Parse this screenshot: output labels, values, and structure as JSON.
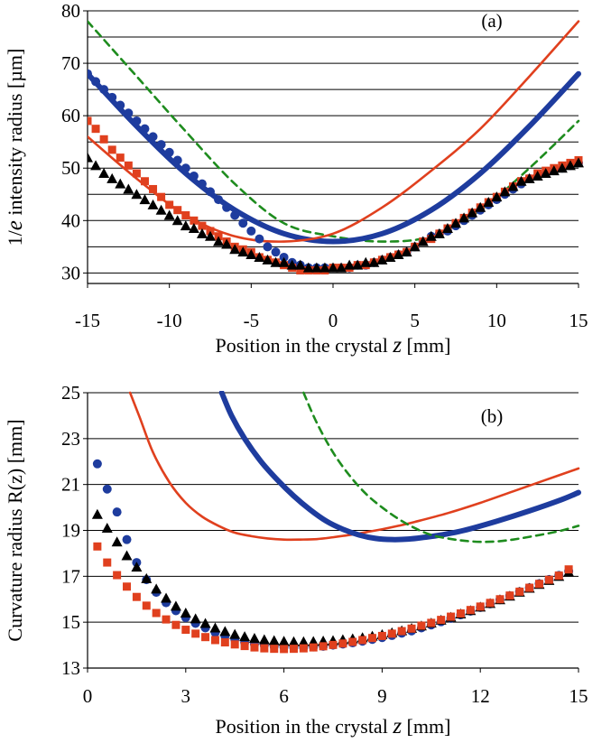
{
  "chart_data": [
    {
      "type": "line",
      "panel_label": "(a)",
      "xlabel": {
        "prefix": "Position in the crystal ",
        "italic": "z",
        "suffix": " [mm]"
      },
      "ylabel": {
        "prefix": "1/",
        "italic": "e",
        "suffix": " intensity radius [µm]"
      },
      "xlim": [
        -15,
        15
      ],
      "ylim": [
        28,
        80
      ],
      "xticks": [
        -15,
        -10,
        -5,
        0,
        5,
        10,
        15
      ],
      "yticks": [
        30,
        40,
        50,
        60,
        70,
        80
      ],
      "gridlines_y": [
        30,
        35,
        40,
        45,
        50,
        55,
        60,
        65,
        70,
        75,
        80
      ],
      "series": [
        {
          "style": "dashed-line",
          "color": "#1e8c1e",
          "x": [
            -15,
            -12,
            -9,
            -6,
            -3,
            0,
            3,
            6,
            9,
            12,
            15
          ],
          "y": [
            78,
            67.5,
            57,
            47,
            39.5,
            37,
            36,
            37,
            42,
            50,
            59
          ]
        },
        {
          "style": "thick-line",
          "color": "#1e3c9e",
          "x": [
            -15,
            -12,
            -9,
            -6,
            -3,
            0,
            3,
            6,
            9,
            12,
            15
          ],
          "y": [
            68,
            58,
            49,
            42,
            37.5,
            36,
            37.5,
            42,
            49,
            58,
            68
          ]
        },
        {
          "style": "line",
          "color": "#e0401e",
          "x": [
            -15,
            -12,
            -9,
            -6,
            -3,
            0,
            3,
            6,
            9,
            12,
            15
          ],
          "y": [
            56,
            48,
            41,
            37,
            36,
            37.5,
            42.5,
            49.5,
            57.5,
            67.5,
            78
          ]
        },
        {
          "style": "circle-markers",
          "color": "#1e3c9e",
          "x": [
            -15,
            -14.5,
            -14,
            -13.5,
            -13,
            -12.5,
            -12,
            -11.5,
            -11,
            -10.5,
            -10,
            -9.5,
            -9,
            -8.5,
            -8,
            -7.5,
            -7,
            -6.5,
            -6,
            -5.5,
            -5,
            -4.5,
            -4,
            -3.5,
            -3,
            -2.5,
            -2,
            -1.5,
            -1,
            -0.5,
            0,
            0.5,
            1,
            1.5,
            2,
            2.5,
            3,
            3.5,
            4,
            4.5,
            5,
            5.5,
            6,
            6.5,
            7,
            7.5,
            8,
            8.5,
            9,
            9.5,
            10,
            10.5,
            11,
            11.5,
            12,
            12.5,
            13,
            13.5,
            14,
            14.5,
            15
          ],
          "y": [
            68,
            66.5,
            65,
            63.5,
            62,
            60.5,
            59,
            57.5,
            56,
            54.5,
            53,
            51.5,
            50,
            48.5,
            47,
            45.5,
            44,
            42.5,
            41,
            39.5,
            38,
            36.5,
            35,
            34,
            33,
            32,
            31.5,
            31,
            31,
            31,
            31,
            31,
            31,
            31.5,
            31.5,
            32,
            32.5,
            33,
            33.5,
            34,
            35,
            36,
            37,
            37.5,
            38,
            39,
            40,
            41,
            42,
            43,
            44,
            45,
            46,
            47,
            48,
            48.5,
            49,
            49.5,
            50,
            50.5,
            51
          ]
        },
        {
          "style": "square-markers",
          "color": "#e0401e",
          "x": [
            -15,
            -14.5,
            -14,
            -13.5,
            -13,
            -12.5,
            -12,
            -11.5,
            -11,
            -10.5,
            -10,
            -9.5,
            -9,
            -8.5,
            -8,
            -7.5,
            -7,
            -6.5,
            -6,
            -5.5,
            -5,
            -4.5,
            -4,
            -3.5,
            -3,
            -2.5,
            -2,
            -1.5,
            -1,
            -0.5,
            0,
            0.5,
            1,
            1.5,
            2,
            2.5,
            3,
            3.5,
            4,
            4.5,
            5,
            5.5,
            6,
            6.5,
            7,
            7.5,
            8,
            8.5,
            9,
            9.5,
            10,
            10.5,
            11,
            11.5,
            12,
            12.5,
            13,
            13.5,
            14,
            14.5,
            15
          ],
          "y": [
            59,
            57.5,
            55.5,
            53.5,
            52,
            50.5,
            49,
            47.5,
            46,
            44.5,
            43,
            42,
            41,
            40,
            39,
            38,
            37,
            36,
            35,
            34.5,
            34,
            33,
            32.5,
            32,
            31.5,
            31,
            30.5,
            30.5,
            30.5,
            30.5,
            31,
            31,
            31,
            31.5,
            31.5,
            32,
            32.5,
            33,
            33.5,
            34,
            35,
            36,
            36.5,
            37.5,
            38.5,
            39.5,
            40.5,
            41.5,
            42.5,
            43.5,
            44.5,
            45.5,
            46.5,
            47.5,
            48,
            49,
            49.5,
            50,
            50.5,
            51,
            51.5
          ]
        },
        {
          "style": "triangle-markers",
          "color": "#000000",
          "x": [
            -15,
            -14.5,
            -14,
            -13.5,
            -13,
            -12.5,
            -12,
            -11.5,
            -11,
            -10.5,
            -10,
            -9.5,
            -9,
            -8.5,
            -8,
            -7.5,
            -7,
            -6.5,
            -6,
            -5.5,
            -5,
            -4.5,
            -4,
            -3.5,
            -3,
            -2.5,
            -2,
            -1.5,
            -1,
            -0.5,
            0,
            0.5,
            1,
            1.5,
            2,
            2.5,
            3,
            3.5,
            4,
            4.5,
            5,
            5.5,
            6,
            6.5,
            7,
            7.5,
            8,
            8.5,
            9,
            9.5,
            10,
            10.5,
            11,
            11.5,
            12,
            12.5,
            13,
            13.5,
            14,
            14.5,
            15
          ],
          "y": [
            52,
            50.5,
            49,
            48,
            47,
            46,
            45,
            44,
            43,
            42,
            41,
            40,
            39,
            38.5,
            37.5,
            37,
            36,
            35.5,
            34.5,
            34,
            33.5,
            33,
            32.5,
            32,
            32,
            31.5,
            31.5,
            31,
            31,
            31,
            31,
            31,
            31.5,
            31.5,
            32,
            32,
            32.5,
            33,
            33.5,
            34,
            35,
            36,
            37,
            37.5,
            38.5,
            39.5,
            40.5,
            41.5,
            42.5,
            43.5,
            44.5,
            45.5,
            46.5,
            47.5,
            48,
            48.5,
            49,
            49.5,
            50,
            50.5,
            51
          ]
        }
      ]
    },
    {
      "type": "line",
      "panel_label": "(b)",
      "xlabel": {
        "prefix": "Position in the crystal ",
        "italic": "z",
        "suffix": " [mm]"
      },
      "ylabel": {
        "prefix": "Curvature radius R(z) [mm]",
        "italic": "",
        "suffix": ""
      },
      "xlim": [
        0,
        15
      ],
      "ylim": [
        13,
        25
      ],
      "xticks": [
        0,
        3,
        6,
        9,
        12,
        15
      ],
      "yticks": [
        13,
        15,
        17,
        19,
        21,
        23,
        25
      ],
      "gridlines_y": [
        13,
        15,
        17,
        19,
        21,
        23,
        25
      ],
      "series": [
        {
          "style": "line",
          "color": "#e0401e",
          "x": [
            1.3,
            1.6,
            2,
            2.5,
            3,
            3.5,
            4,
            4.5,
            5,
            5.5,
            6,
            6.5,
            7,
            7.5,
            8,
            8.5,
            9,
            9.5,
            10,
            11,
            12,
            13,
            14,
            15
          ],
          "y": [
            25,
            23.9,
            22.4,
            21.1,
            20.2,
            19.6,
            19.2,
            18.9,
            18.75,
            18.65,
            18.6,
            18.6,
            18.62,
            18.7,
            18.8,
            18.92,
            19.05,
            19.2,
            19.37,
            19.75,
            20.2,
            20.7,
            21.2,
            21.7
          ]
        },
        {
          "style": "thick-line",
          "color": "#1e3c9e",
          "x": [
            4.1,
            4.4,
            4.8,
            5.3,
            5.8,
            6.3,
            6.8,
            7.3,
            7.8,
            8.3,
            8.8,
            9.3,
            9.8,
            10.3,
            10.8,
            11.5,
            12.5,
            13.5,
            14.5,
            15
          ],
          "y": [
            25,
            24,
            23.0,
            22.0,
            21.2,
            20.5,
            19.9,
            19.4,
            19.05,
            18.8,
            18.65,
            18.6,
            18.62,
            18.7,
            18.8,
            19.0,
            19.4,
            19.85,
            20.35,
            20.65
          ]
        },
        {
          "style": "dashed-line",
          "color": "#1e8c1e",
          "x": [
            6.6,
            7,
            7.5,
            8,
            8.5,
            9,
            9.5,
            10,
            10.5,
            11,
            11.5,
            12,
            12.5,
            13,
            13.5,
            14,
            14.5,
            15
          ],
          "y": [
            25,
            23.7,
            22.4,
            21.4,
            20.6,
            20.0,
            19.5,
            19.1,
            18.8,
            18.65,
            18.55,
            18.5,
            18.52,
            18.6,
            18.72,
            18.85,
            19.0,
            19.2
          ]
        },
        {
          "style": "circle-markers",
          "color": "#1e3c9e",
          "x": [
            0.3,
            0.6,
            0.9,
            1.2,
            1.5,
            1.8,
            2.1,
            2.4,
            2.7,
            3.0,
            3.3,
            3.6,
            3.9,
            4.2,
            4.5,
            4.8,
            5.1,
            5.4,
            5.7,
            6.0,
            6.3,
            6.6,
            6.9,
            7.2,
            7.5,
            7.8,
            8.1,
            8.4,
            8.7,
            9.0,
            9.3,
            9.6,
            9.9,
            10.2,
            10.5,
            10.8,
            11.1,
            11.4,
            11.7,
            12.0,
            12.3,
            12.6,
            12.9,
            13.2,
            13.5,
            13.8,
            14.1,
            14.4,
            14.7
          ],
          "y": [
            21.9,
            20.8,
            19.8,
            18.6,
            17.6,
            16.85,
            16.3,
            15.85,
            15.5,
            15.2,
            14.95,
            14.75,
            14.55,
            14.4,
            14.25,
            14.12,
            14.05,
            14.0,
            13.95,
            13.92,
            13.9,
            13.9,
            13.92,
            13.95,
            14.0,
            14.05,
            14.1,
            14.17,
            14.25,
            14.33,
            14.42,
            14.52,
            14.62,
            14.75,
            14.88,
            15.02,
            15.17,
            15.32,
            15.48,
            15.64,
            15.8,
            15.98,
            16.15,
            16.33,
            16.5,
            16.68,
            16.86,
            17.04,
            17.22
          ]
        },
        {
          "style": "triangle-markers",
          "color": "#000000",
          "x": [
            0.3,
            0.6,
            0.9,
            1.2,
            1.5,
            1.8,
            2.1,
            2.4,
            2.7,
            3.0,
            3.3,
            3.6,
            3.9,
            4.2,
            4.5,
            4.8,
            5.1,
            5.4,
            5.7,
            6.0,
            6.3,
            6.6,
            6.9,
            7.2,
            7.5,
            7.8,
            8.1,
            8.4,
            8.7,
            9.0,
            9.3,
            9.6,
            9.9,
            10.2,
            10.5,
            10.8,
            11.1,
            11.4,
            11.7,
            12.0,
            12.3,
            12.6,
            12.9,
            13.2,
            13.5,
            13.8,
            14.1,
            14.4,
            14.7
          ],
          "y": [
            19.7,
            19.1,
            18.5,
            17.9,
            17.4,
            16.9,
            16.45,
            16.05,
            15.7,
            15.4,
            15.15,
            14.95,
            14.75,
            14.6,
            14.47,
            14.37,
            14.3,
            14.24,
            14.2,
            14.17,
            14.15,
            14.15,
            14.16,
            14.18,
            14.2,
            14.24,
            14.28,
            14.33,
            14.39,
            14.46,
            14.54,
            14.63,
            14.73,
            14.84,
            14.96,
            15.09,
            15.22,
            15.36,
            15.51,
            15.66,
            15.82,
            15.98,
            16.14,
            16.31,
            16.48,
            16.65,
            16.82,
            17.0,
            17.18
          ]
        },
        {
          "style": "square-markers",
          "color": "#e0401e",
          "x": [
            0.3,
            0.6,
            0.9,
            1.2,
            1.5,
            1.8,
            2.1,
            2.4,
            2.7,
            3.0,
            3.3,
            3.6,
            3.9,
            4.2,
            4.5,
            4.8,
            5.1,
            5.4,
            5.7,
            6.0,
            6.3,
            6.6,
            6.9,
            7.2,
            7.5,
            7.8,
            8.1,
            8.4,
            8.7,
            9.0,
            9.3,
            9.6,
            9.9,
            10.2,
            10.5,
            10.8,
            11.1,
            11.4,
            11.7,
            12.0,
            12.3,
            12.6,
            12.9,
            13.2,
            13.5,
            13.8,
            14.1,
            14.4,
            14.7
          ],
          "y": [
            18.3,
            17.6,
            17.05,
            16.55,
            16.1,
            15.72,
            15.4,
            15.12,
            14.88,
            14.67,
            14.5,
            14.35,
            14.22,
            14.12,
            14.03,
            13.96,
            13.9,
            13.86,
            13.84,
            13.83,
            13.84,
            13.86,
            13.9,
            13.95,
            14.01,
            14.07,
            14.14,
            14.22,
            14.31,
            14.4,
            14.5,
            14.61,
            14.72,
            14.85,
            14.97,
            15.1,
            15.24,
            15.38,
            15.53,
            15.68,
            15.84,
            16.0,
            16.16,
            16.33,
            16.5,
            16.67,
            16.85,
            17.03,
            17.3
          ]
        }
      ]
    }
  ]
}
